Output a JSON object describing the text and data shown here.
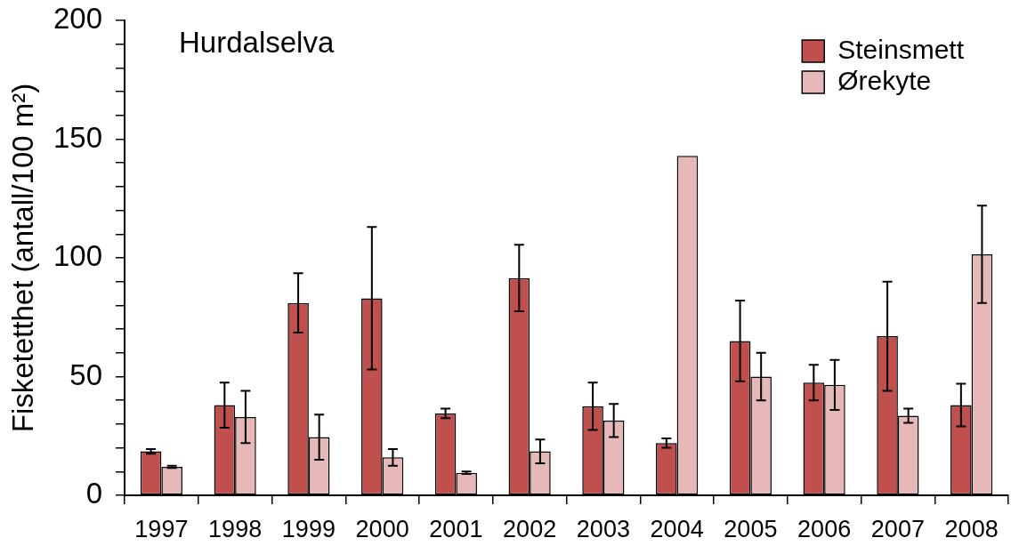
{
  "chart_data": {
    "type": "bar",
    "title": "Hurdalselva",
    "ylabel": "Fisketetthet (antall/100 m²)",
    "categories": [
      "1997",
      "1998",
      "1999",
      "2000",
      "2001",
      "2002",
      "2003",
      "2004",
      "2005",
      "2006",
      "2007",
      "2008"
    ],
    "series": [
      {
        "name": "Steinsmett",
        "color": "#c0504d",
        "values": [
          18.5,
          38,
          81,
          83,
          34.5,
          91.5,
          37.5,
          22,
          65,
          47.5,
          67,
          38
        ],
        "errors": [
          1,
          9.5,
          12.5,
          30,
          2,
          14,
          10,
          2,
          17,
          7.5,
          23,
          9
        ]
      },
      {
        "name": "Ørekyte",
        "color": "#e6b9b8",
        "values": [
          12,
          33,
          24.5,
          16,
          9.5,
          18.5,
          31.5,
          143,
          50,
          46.5,
          33.5,
          101.5
        ],
        "errors": [
          0.5,
          11,
          9.5,
          3.5,
          0.5,
          5,
          7,
          null,
          10,
          10.5,
          3,
          20.5
        ]
      }
    ],
    "ylim": [
      0,
      200
    ],
    "yticks": [
      0,
      {
        "value": 10,
        "label": null
      },
      {
        "value": 20,
        "label": null
      },
      {
        "value": 30,
        "label": null
      },
      {
        "value": 40,
        "label": null
      },
      50,
      {
        "value": 60,
        "label": null
      },
      {
        "value": 70,
        "label": null
      },
      {
        "value": 80,
        "label": null
      },
      {
        "value": 90,
        "label": null
      },
      100,
      {
        "value": 110,
        "label": null
      },
      {
        "value": 120,
        "label": null
      },
      {
        "value": 130,
        "label": null
      },
      {
        "value": 140,
        "label": null
      },
      150,
      {
        "value": 160,
        "label": null
      },
      {
        "value": 170,
        "label": null
      },
      {
        "value": 180,
        "label": null
      },
      {
        "value": 190,
        "label": null
      },
      200
    ],
    "legend": "top right"
  }
}
